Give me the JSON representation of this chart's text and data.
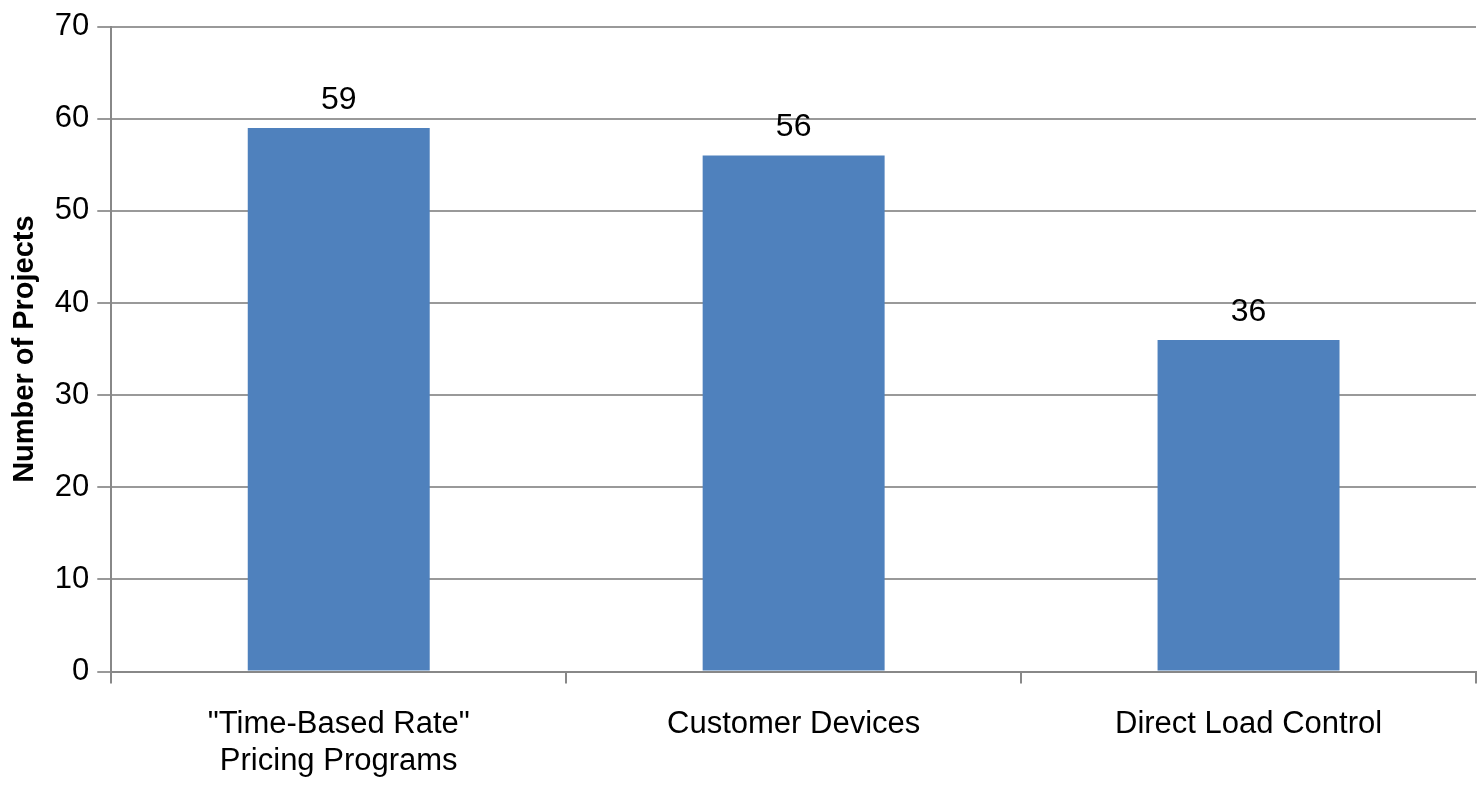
{
  "chart_data": {
    "type": "bar",
    "ylabel": "Number of Projects",
    "categories": [
      "\"Time-Based Rate\"\nPricing Programs",
      "Customer Devices",
      "Direct Load Control"
    ],
    "values": [
      59,
      56,
      36
    ],
    "color": "#4f81bd",
    "ylim": [
      0,
      70
    ],
    "yticks": [
      0,
      10,
      20,
      30,
      40,
      50,
      60,
      70
    ],
    "grid": "y",
    "data_labels": true
  }
}
